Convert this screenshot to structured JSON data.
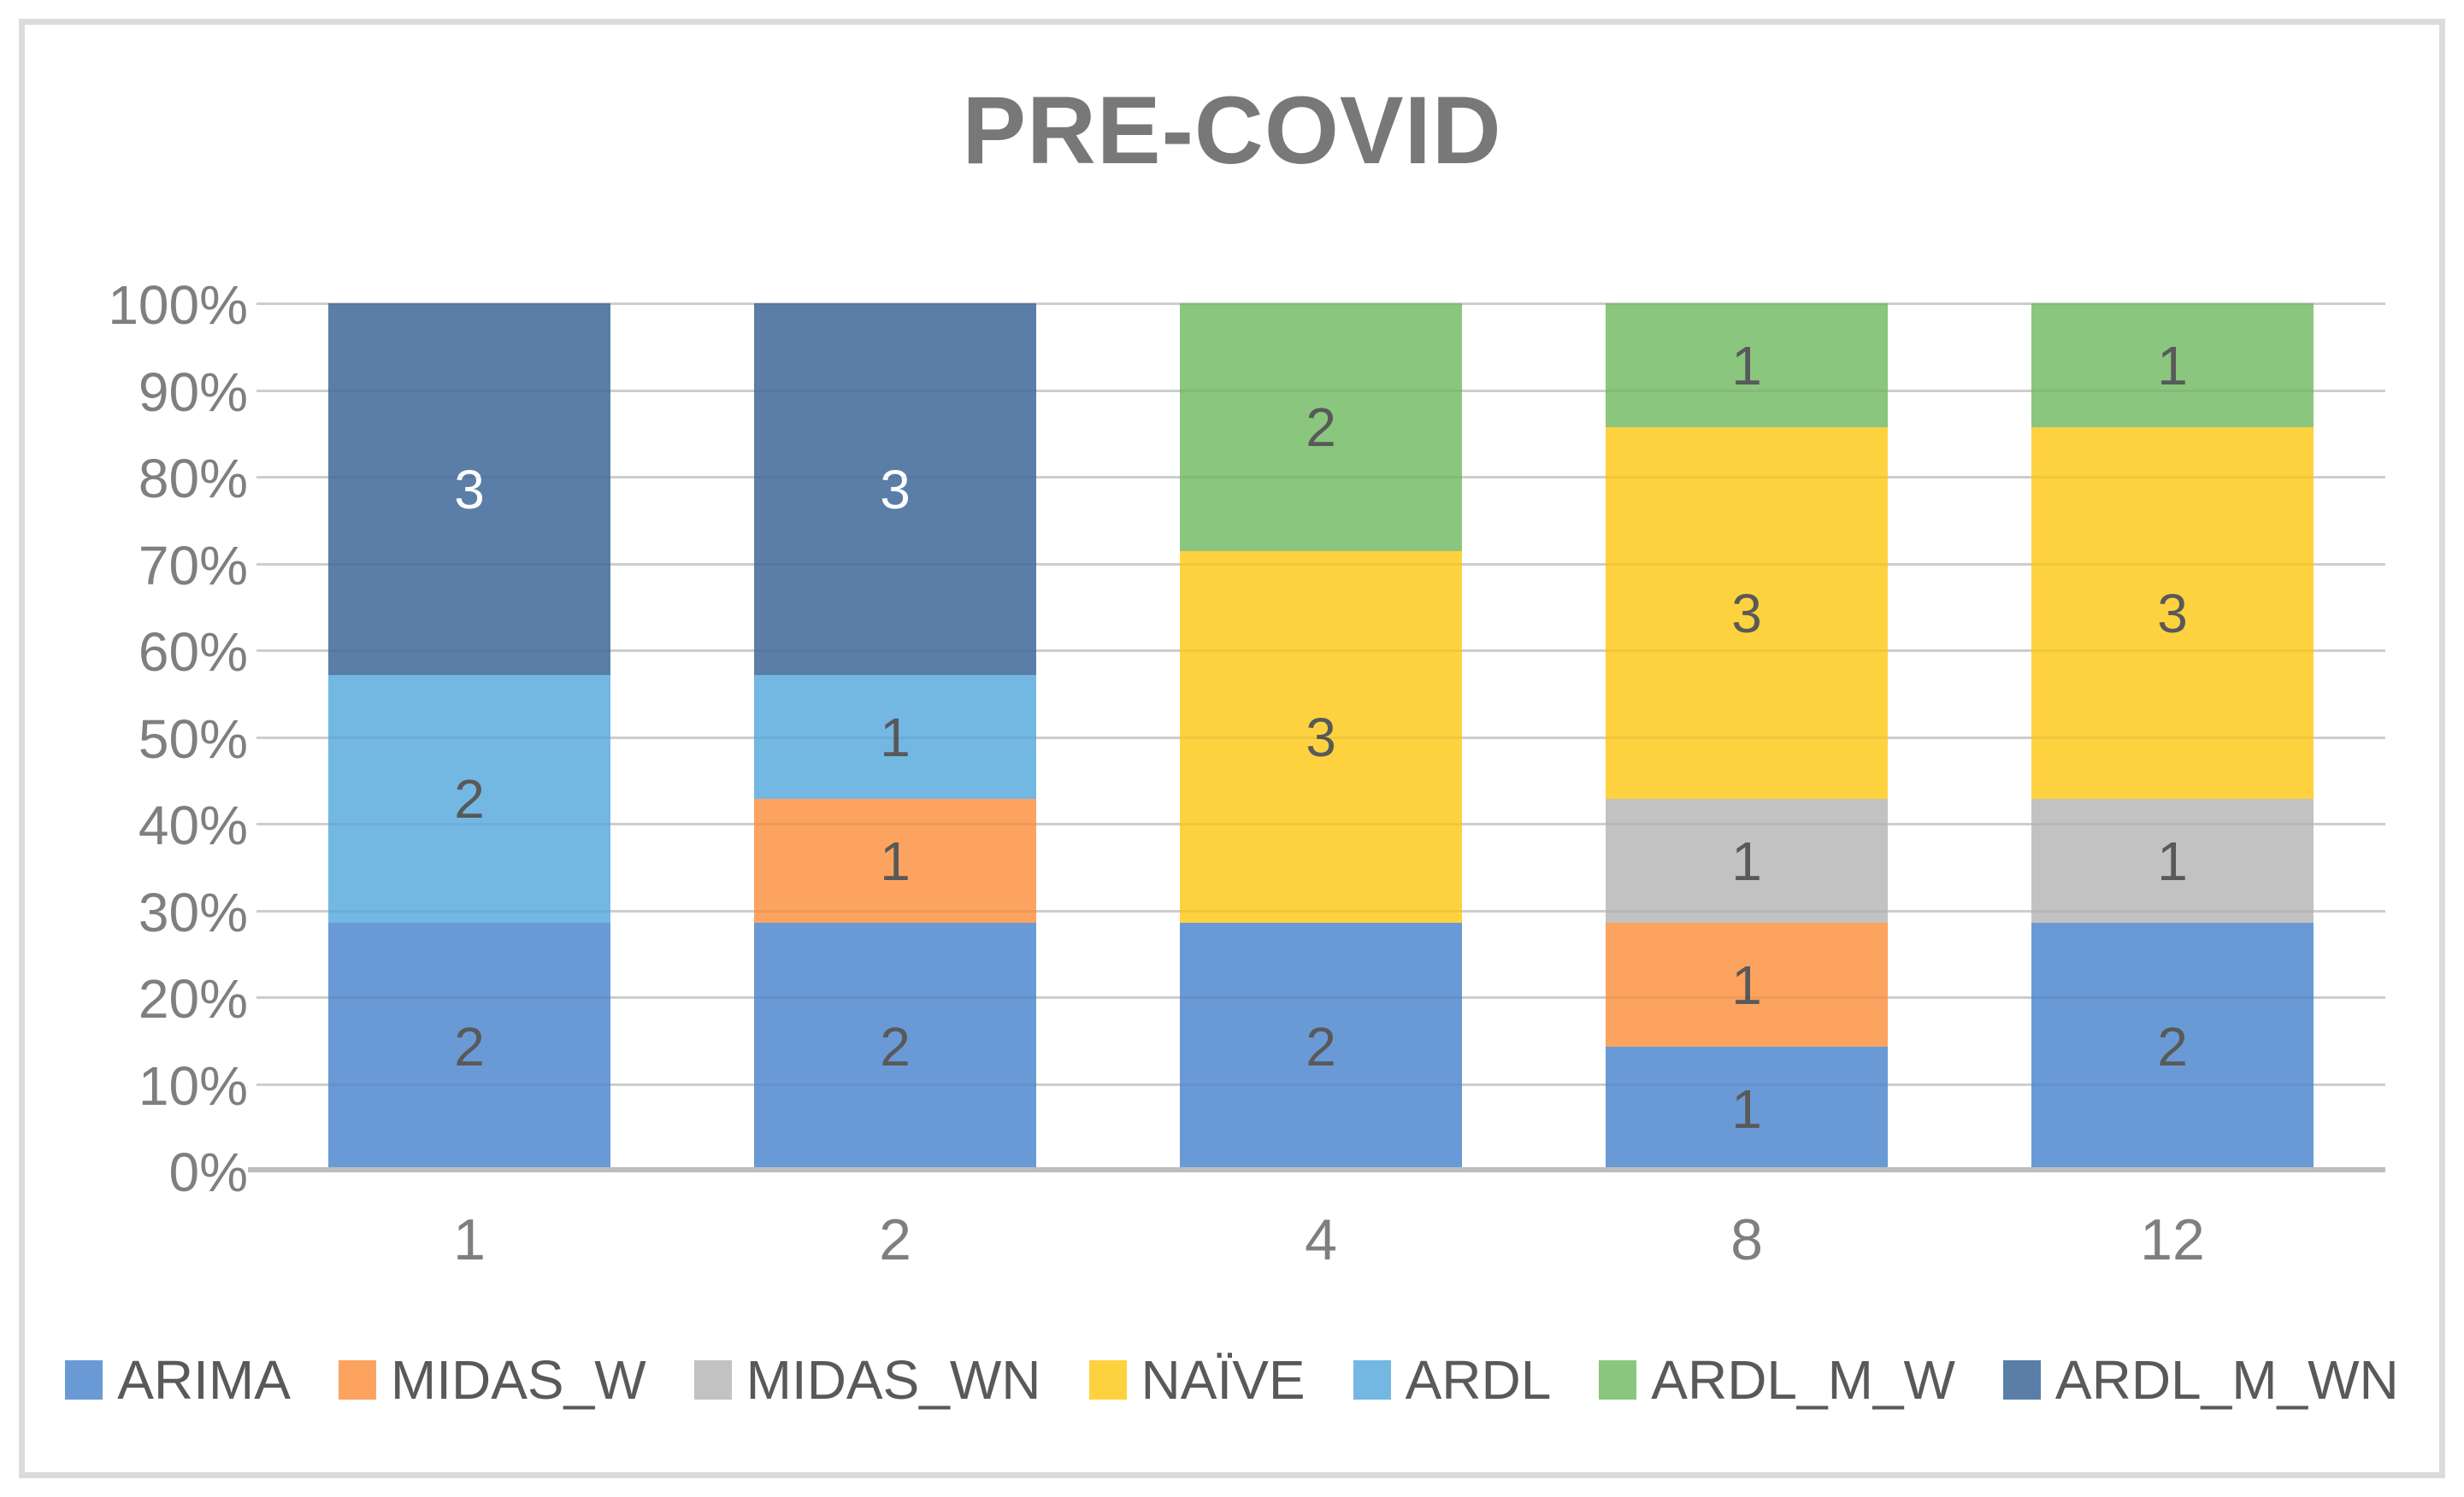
{
  "title": "PRE-COVID",
  "frame": {
    "border_color": "#DBDBDB",
    "background": "#FFFFFF"
  },
  "colors": {
    "title_text": "#787878",
    "axis_text": "#7F7F7F",
    "gridline": "#D9D9D9",
    "axis_line": "#BDBDBD",
    "data_label_default": "#595959"
  },
  "chart_data": {
    "type": "bar",
    "subtype": "100-percent-stacked-column",
    "title": "PRE-COVID",
    "xlabel": "",
    "ylabel": "",
    "categories": [
      "1",
      "2",
      "4",
      "8",
      "12"
    ],
    "series": [
      {
        "name": "ARIMA",
        "color": "#699AD5",
        "label_color": "#595959",
        "values": [
          2,
          2,
          2,
          1,
          2
        ]
      },
      {
        "name": "MIDAS_W",
        "color": "#FCA35F",
        "label_color": "#595959",
        "values": [
          0,
          1,
          0,
          1,
          0
        ]
      },
      {
        "name": "MIDAS_WN",
        "color": "#C2C2C2",
        "label_color": "#595959",
        "values": [
          0,
          0,
          0,
          1,
          1
        ]
      },
      {
        "name": "NAÏVE",
        "color": "#FED23F",
        "label_color": "#595959",
        "values": [
          0,
          0,
          3,
          3,
          3
        ]
      },
      {
        "name": "ARDL",
        "color": "#73B7E3",
        "label_color": "#595959",
        "values": [
          2,
          1,
          0,
          0,
          0
        ]
      },
      {
        "name": "ARDL_M_W",
        "color": "#8AC67D",
        "label_color": "#595959",
        "values": [
          0,
          0,
          2,
          1,
          1
        ]
      },
      {
        "name": "ARDL_M_WN",
        "color": "#5B7EA8",
        "label_color": "#FFFFFF",
        "values": [
          3,
          3,
          0,
          0,
          0
        ]
      }
    ],
    "column_totals": [
      7,
      7,
      7,
      7,
      7
    ],
    "y_ticks": [
      "100%",
      "90%",
      "80%",
      "70%",
      "60%",
      "50%",
      "40%",
      "30%",
      "20%",
      "10%",
      "0%"
    ],
    "ylim": [
      0,
      100
    ],
    "grid": true,
    "legend_position": "bottom",
    "data_labels_shown": true
  }
}
